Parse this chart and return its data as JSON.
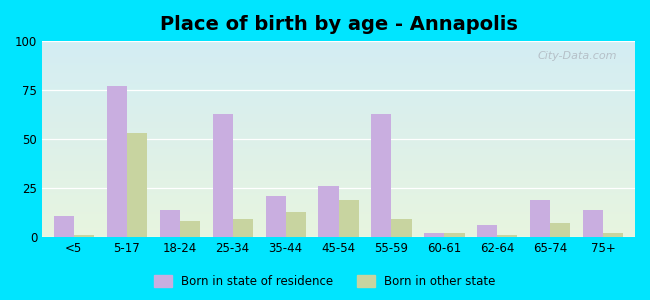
{
  "title": "Place of birth by age - Annapolis",
  "categories": [
    "<5",
    "5-17",
    "18-24",
    "25-34",
    "35-44",
    "45-54",
    "55-59",
    "60-61",
    "62-64",
    "65-74",
    "75+"
  ],
  "born_in_state": [
    11,
    77,
    14,
    63,
    21,
    26,
    63,
    2,
    6,
    19,
    14
  ],
  "born_other_state": [
    1,
    53,
    8,
    9,
    13,
    19,
    9,
    2,
    1,
    7,
    2
  ],
  "color_state": "#c9aee0",
  "color_other": "#c8d4a0",
  "ylim": [
    0,
    100
  ],
  "yticks": [
    0,
    25,
    50,
    75,
    100
  ],
  "bg_color_top": "#d0ecf8",
  "bg_color_bottom": "#e8f5e0",
  "outer_bg": "#00e5ff",
  "legend_label_state": "Born in state of residence",
  "legend_label_other": "Born in other state",
  "title_fontsize": 14,
  "bar_width": 0.38,
  "watermark": "City-Data.com"
}
